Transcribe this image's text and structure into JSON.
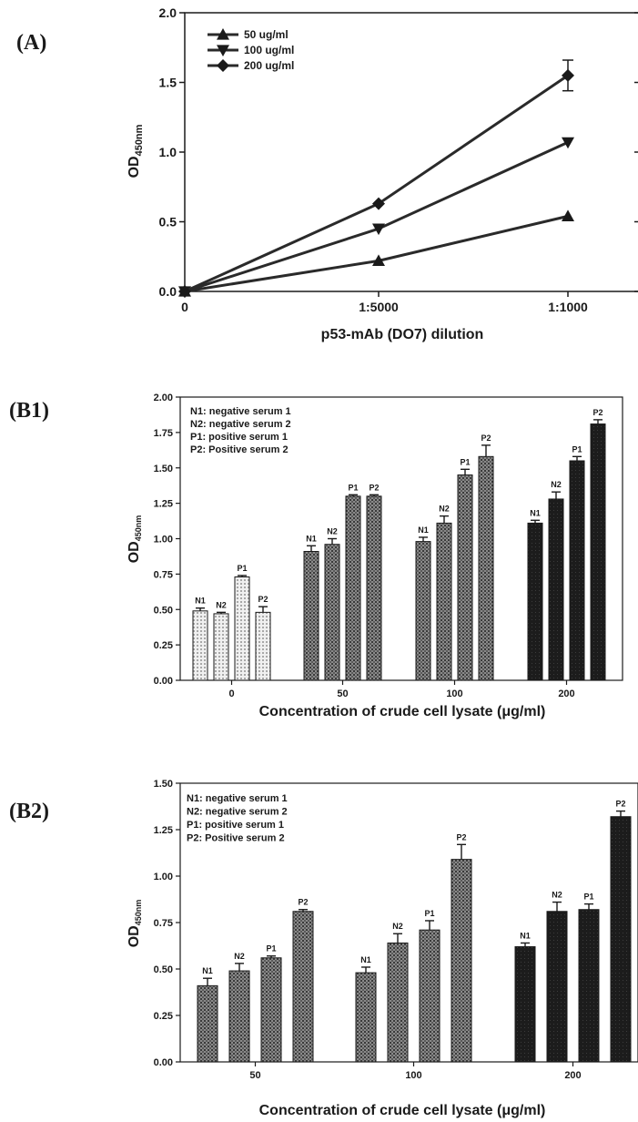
{
  "chart_data": [
    {
      "panel": "(A)",
      "type": "line",
      "xlabel": "p53-mAb (DO7) dilution",
      "ylabel_main": "OD",
      "ylabel_sub": "450nm",
      "categories": [
        "0",
        "1:5000",
        "1:1000"
      ],
      "ylim": [
        0,
        2.0
      ],
      "yticks": [
        "0.0",
        "0.5",
        "1.0",
        "1.5",
        "2.0"
      ],
      "series": [
        {
          "name": "50 ug/ml",
          "marker": "triangle-up",
          "values": [
            0.0,
            0.22,
            0.54
          ]
        },
        {
          "name": "100 ug/ml",
          "marker": "triangle-down",
          "values": [
            0.0,
            0.45,
            1.07
          ]
        },
        {
          "name": "200 ug/ml",
          "marker": "diamond",
          "values": [
            0.0,
            0.63,
            1.55
          ],
          "errors": [
            0,
            0,
            0.11
          ]
        }
      ],
      "legend_position": "top-left"
    },
    {
      "panel": "(B1)",
      "type": "bar",
      "xlabel": "Concentration of crude cell lysate (μg/ml)",
      "ylabel_main": "OD",
      "ylabel_sub": "450nm",
      "categories": [
        "0",
        "50",
        "100",
        "200"
      ],
      "ylim": [
        0,
        2.0
      ],
      "yticks": [
        "0.00",
        "0.25",
        "0.50",
        "0.75",
        "1.00",
        "1.25",
        "1.50",
        "1.75",
        "2.00"
      ],
      "legend": [
        "N1: negative serum 1",
        "N2: negative serum 2",
        "P1: positive serum 1",
        "P2: Positive serum 2"
      ],
      "legend_position": "top-left",
      "groups": [
        {
          "bars": [
            {
              "label": "N1",
              "value": 0.49,
              "error": 0.02
            },
            {
              "label": "N2",
              "value": 0.47,
              "error": 0.01
            },
            {
              "label": "P1",
              "value": 0.73,
              "error": 0.01
            },
            {
              "label": "P2",
              "value": 0.48,
              "error": 0.04
            }
          ]
        },
        {
          "bars": [
            {
              "label": "N1",
              "value": 0.91,
              "error": 0.04
            },
            {
              "label": "N2",
              "value": 0.96,
              "error": 0.04
            },
            {
              "label": "P1",
              "value": 1.3,
              "error": 0.01
            },
            {
              "label": "P2",
              "value": 1.3,
              "error": 0.01
            }
          ]
        },
        {
          "bars": [
            {
              "label": "N1",
              "value": 0.98,
              "error": 0.03
            },
            {
              "label": "N2",
              "value": 1.11,
              "error": 0.05
            },
            {
              "label": "P1",
              "value": 1.45,
              "error": 0.04
            },
            {
              "label": "P2",
              "value": 1.58,
              "error": 0.08
            }
          ]
        },
        {
          "bars": [
            {
              "label": "N1",
              "value": 1.11,
              "error": 0.02
            },
            {
              "label": "N2",
              "value": 1.28,
              "error": 0.05
            },
            {
              "label": "P1",
              "value": 1.55,
              "error": 0.03
            },
            {
              "label": "P2",
              "value": 1.81,
              "error": 0.03
            }
          ]
        }
      ]
    },
    {
      "panel": "(B2)",
      "type": "bar",
      "xlabel": "Concentration of crude cell lysate (μg/ml)",
      "ylabel_main": "OD",
      "ylabel_sub": "450nm",
      "categories": [
        "50",
        "100",
        "200"
      ],
      "ylim": [
        0,
        1.5
      ],
      "yticks": [
        "0.00",
        "0.25",
        "0.50",
        "0.75",
        "1.00",
        "1.25",
        "1.50"
      ],
      "legend": [
        "N1: negative serum 1",
        "N2: negative serum 2",
        "P1: positive serum 1",
        "P2: Positive serum 2"
      ],
      "legend_position": "top-left",
      "groups": [
        {
          "bars": [
            {
              "label": "N1",
              "value": 0.41,
              "error": 0.04
            },
            {
              "label": "N2",
              "value": 0.49,
              "error": 0.04
            },
            {
              "label": "P1",
              "value": 0.56,
              "error": 0.01
            },
            {
              "label": "P2",
              "value": 0.81,
              "error": 0.01
            }
          ]
        },
        {
          "bars": [
            {
              "label": "N1",
              "value": 0.48,
              "error": 0.03
            },
            {
              "label": "N2",
              "value": 0.64,
              "error": 0.05
            },
            {
              "label": "P1",
              "value": 0.71,
              "error": 0.05
            },
            {
              "label": "P2",
              "value": 1.09,
              "error": 0.08
            }
          ]
        },
        {
          "bars": [
            {
              "label": "N1",
              "value": 0.62,
              "error": 0.02
            },
            {
              "label": "N2",
              "value": 0.81,
              "error": 0.05
            },
            {
              "label": "P1",
              "value": 0.82,
              "error": 0.03
            },
            {
              "label": "P2",
              "value": 1.32,
              "error": 0.03
            }
          ]
        }
      ]
    }
  ]
}
